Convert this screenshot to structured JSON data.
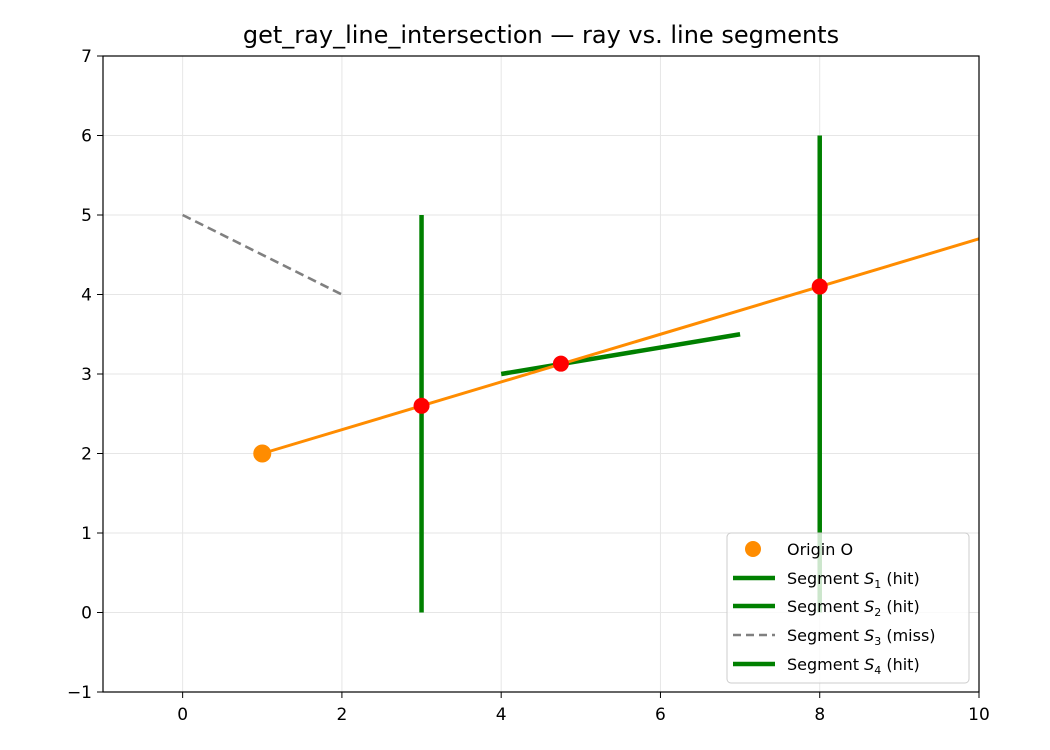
{
  "chart_data": {
    "type": "line",
    "title": "get_ray_line_intersection — ray vs. line segments",
    "xlabel": "",
    "ylabel": "",
    "xlim": [
      -1,
      10
    ],
    "ylim": [
      -1,
      7
    ],
    "xticks": [
      0,
      2,
      4,
      6,
      8,
      10
    ],
    "yticks": [
      -1,
      0,
      1,
      2,
      3,
      4,
      5,
      6,
      7
    ],
    "xtick_labels": [
      "0",
      "2",
      "4",
      "6",
      "8",
      "10"
    ],
    "ytick_labels": [
      "−1",
      "0",
      "1",
      "2",
      "3",
      "4",
      "5",
      "6",
      "7"
    ],
    "grid": true,
    "legend_position": "lower-right",
    "origin": {
      "x": 1,
      "y": 2,
      "color": "#ff8c00"
    },
    "ray": {
      "x": [
        1,
        10
      ],
      "y": [
        2,
        4.7
      ],
      "color": "#ff8c00"
    },
    "segments": [
      {
        "legend_prefix": "Segment ",
        "legend_symbol": "S",
        "legend_sub": "1",
        "legend_suffix": " (hit)",
        "x": [
          3,
          3
        ],
        "y": [
          0,
          5
        ],
        "color": "#008000",
        "dashed": false
      },
      {
        "legend_prefix": "Segment ",
        "legend_symbol": "S",
        "legend_sub": "2",
        "legend_suffix": " (hit)",
        "x": [
          4,
          7
        ],
        "y": [
          3,
          3.5
        ],
        "color": "#008000",
        "dashed": false
      },
      {
        "legend_prefix": "Segment ",
        "legend_symbol": "S",
        "legend_sub": "3",
        "legend_suffix": " (miss)",
        "x": [
          0,
          2
        ],
        "y": [
          5,
          4
        ],
        "color": "#808080",
        "dashed": true
      },
      {
        "legend_prefix": "Segment ",
        "legend_symbol": "S",
        "legend_sub": "4",
        "legend_suffix": " (hit)",
        "x": [
          8,
          8
        ],
        "y": [
          0,
          6
        ],
        "color": "#008000",
        "dashed": false
      }
    ],
    "intersections": [
      {
        "x": 3,
        "y": 2.6
      },
      {
        "x": 4.75,
        "y": 3.13
      },
      {
        "x": 8,
        "y": 4.1
      }
    ],
    "intersection_color": "#ff0000",
    "legend": {
      "origin_label": "Origin O"
    }
  }
}
